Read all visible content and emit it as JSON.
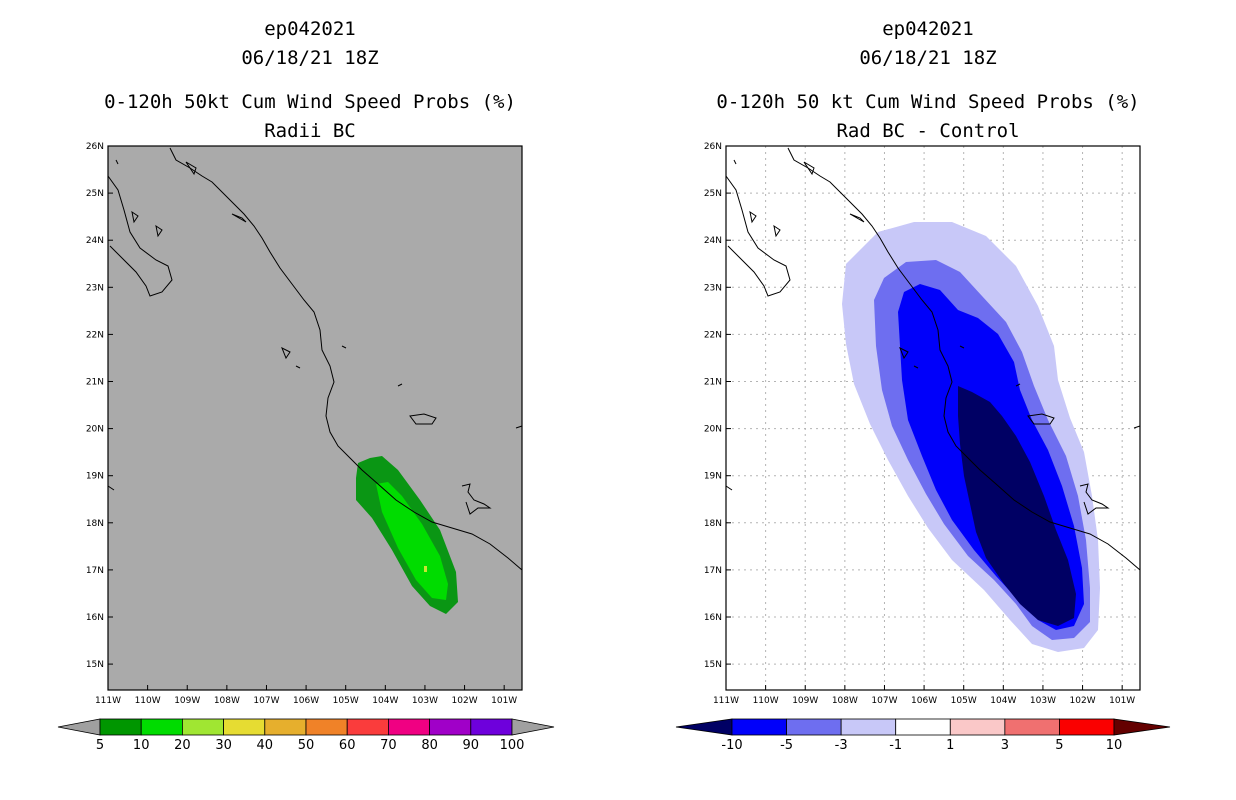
{
  "left_panel": {
    "title_storm": "ep042021",
    "title_date": "06/18/21 18Z",
    "title_product": "0-120h 50kt Cum Wind Speed Probs (%)",
    "title_sub": "Radii BC",
    "lat_labels": [
      "26N",
      "25N",
      "24N",
      "23N",
      "22N",
      "21N",
      "20N",
      "19N",
      "18N",
      "17N",
      "16N",
      "15N"
    ],
    "lon_labels": [
      "111W",
      "110W",
      "109W",
      "108W",
      "107W",
      "106W",
      "105W",
      "104W",
      "103W",
      "102W",
      "101W"
    ],
    "colorbar": {
      "labels": [
        "5",
        "10",
        "20",
        "30",
        "40",
        "50",
        "60",
        "70",
        "80",
        "90",
        "100"
      ],
      "colors": [
        "#009600",
        "#00dc00",
        "#a0e632",
        "#e6dc32",
        "#e6af2d",
        "#f08228",
        "#fa3c3c",
        "#f00082",
        "#a000c8",
        "#6e00dc"
      ],
      "end_color": "#a0a0a0"
    },
    "contour_colors": {
      "outer": "#0a9614",
      "inner": "#00dc00",
      "peak": "#c8e632"
    }
  },
  "right_panel": {
    "title_storm": "ep042021",
    "title_date": "06/18/21 18Z",
    "title_product": "0-120h 50 kt Cum Wind Speed Probs (%)",
    "title_sub": "Rad BC - Control",
    "lat_labels": [
      "26N",
      "25N",
      "24N",
      "23N",
      "22N",
      "21N",
      "20N",
      "19N",
      "18N",
      "17N",
      "16N",
      "15N"
    ],
    "lon_labels": [
      "111W",
      "110W",
      "109W",
      "108W",
      "107W",
      "106W",
      "105W",
      "104W",
      "103W",
      "102W",
      "101W"
    ],
    "colorbar": {
      "labels": [
        "-10",
        "-5",
        "-3",
        "-1",
        "1",
        "3",
        "5",
        "10"
      ],
      "colors": [
        "#0000fa",
        "#6e6ef0",
        "#c8c8f8",
        "#ffffff",
        "#fac8c8",
        "#f07070",
        "#fa0000"
      ],
      "end_low_color": "#000064",
      "end_high_color": "#640000"
    },
    "contour_colors": {
      "l1": "#c8c8f8",
      "l2": "#6e6ef0",
      "l3": "#0000fa",
      "l4": "#000064"
    }
  },
  "map_colors": {
    "ocean_left": "#aaaaaa",
    "ocean_right": "#ffffff",
    "coast": "#000000",
    "grid": "#b4b4b4"
  }
}
